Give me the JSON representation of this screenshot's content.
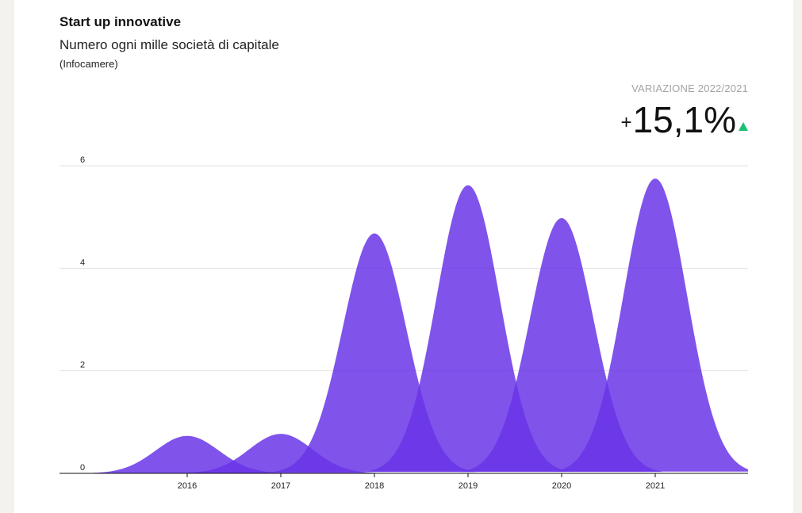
{
  "header": {
    "title": "Start up innovative",
    "subtitle": "Numero ogni mille società di capitale",
    "source": "(Infocamere)"
  },
  "variation": {
    "label": "VARIAZIONE 2022/2021",
    "sign": "+",
    "value": "15,1%",
    "trend": "up",
    "trend_color": "#1dbf73"
  },
  "chart_data": {
    "type": "area",
    "title": "Start up innovative",
    "categories": [
      "2016",
      "2017",
      "2018",
      "2019",
      "2020",
      "2021"
    ],
    "values": [
      0.73,
      0.77,
      4.68,
      5.62,
      4.98,
      5.75
    ],
    "ylim": [
      0,
      6
    ],
    "yticks": [
      "0",
      "2",
      "4",
      "6"
    ],
    "grid": true,
    "legend": "none",
    "fill_color": "#6a35e8",
    "fill_opacity": 0.85
  }
}
